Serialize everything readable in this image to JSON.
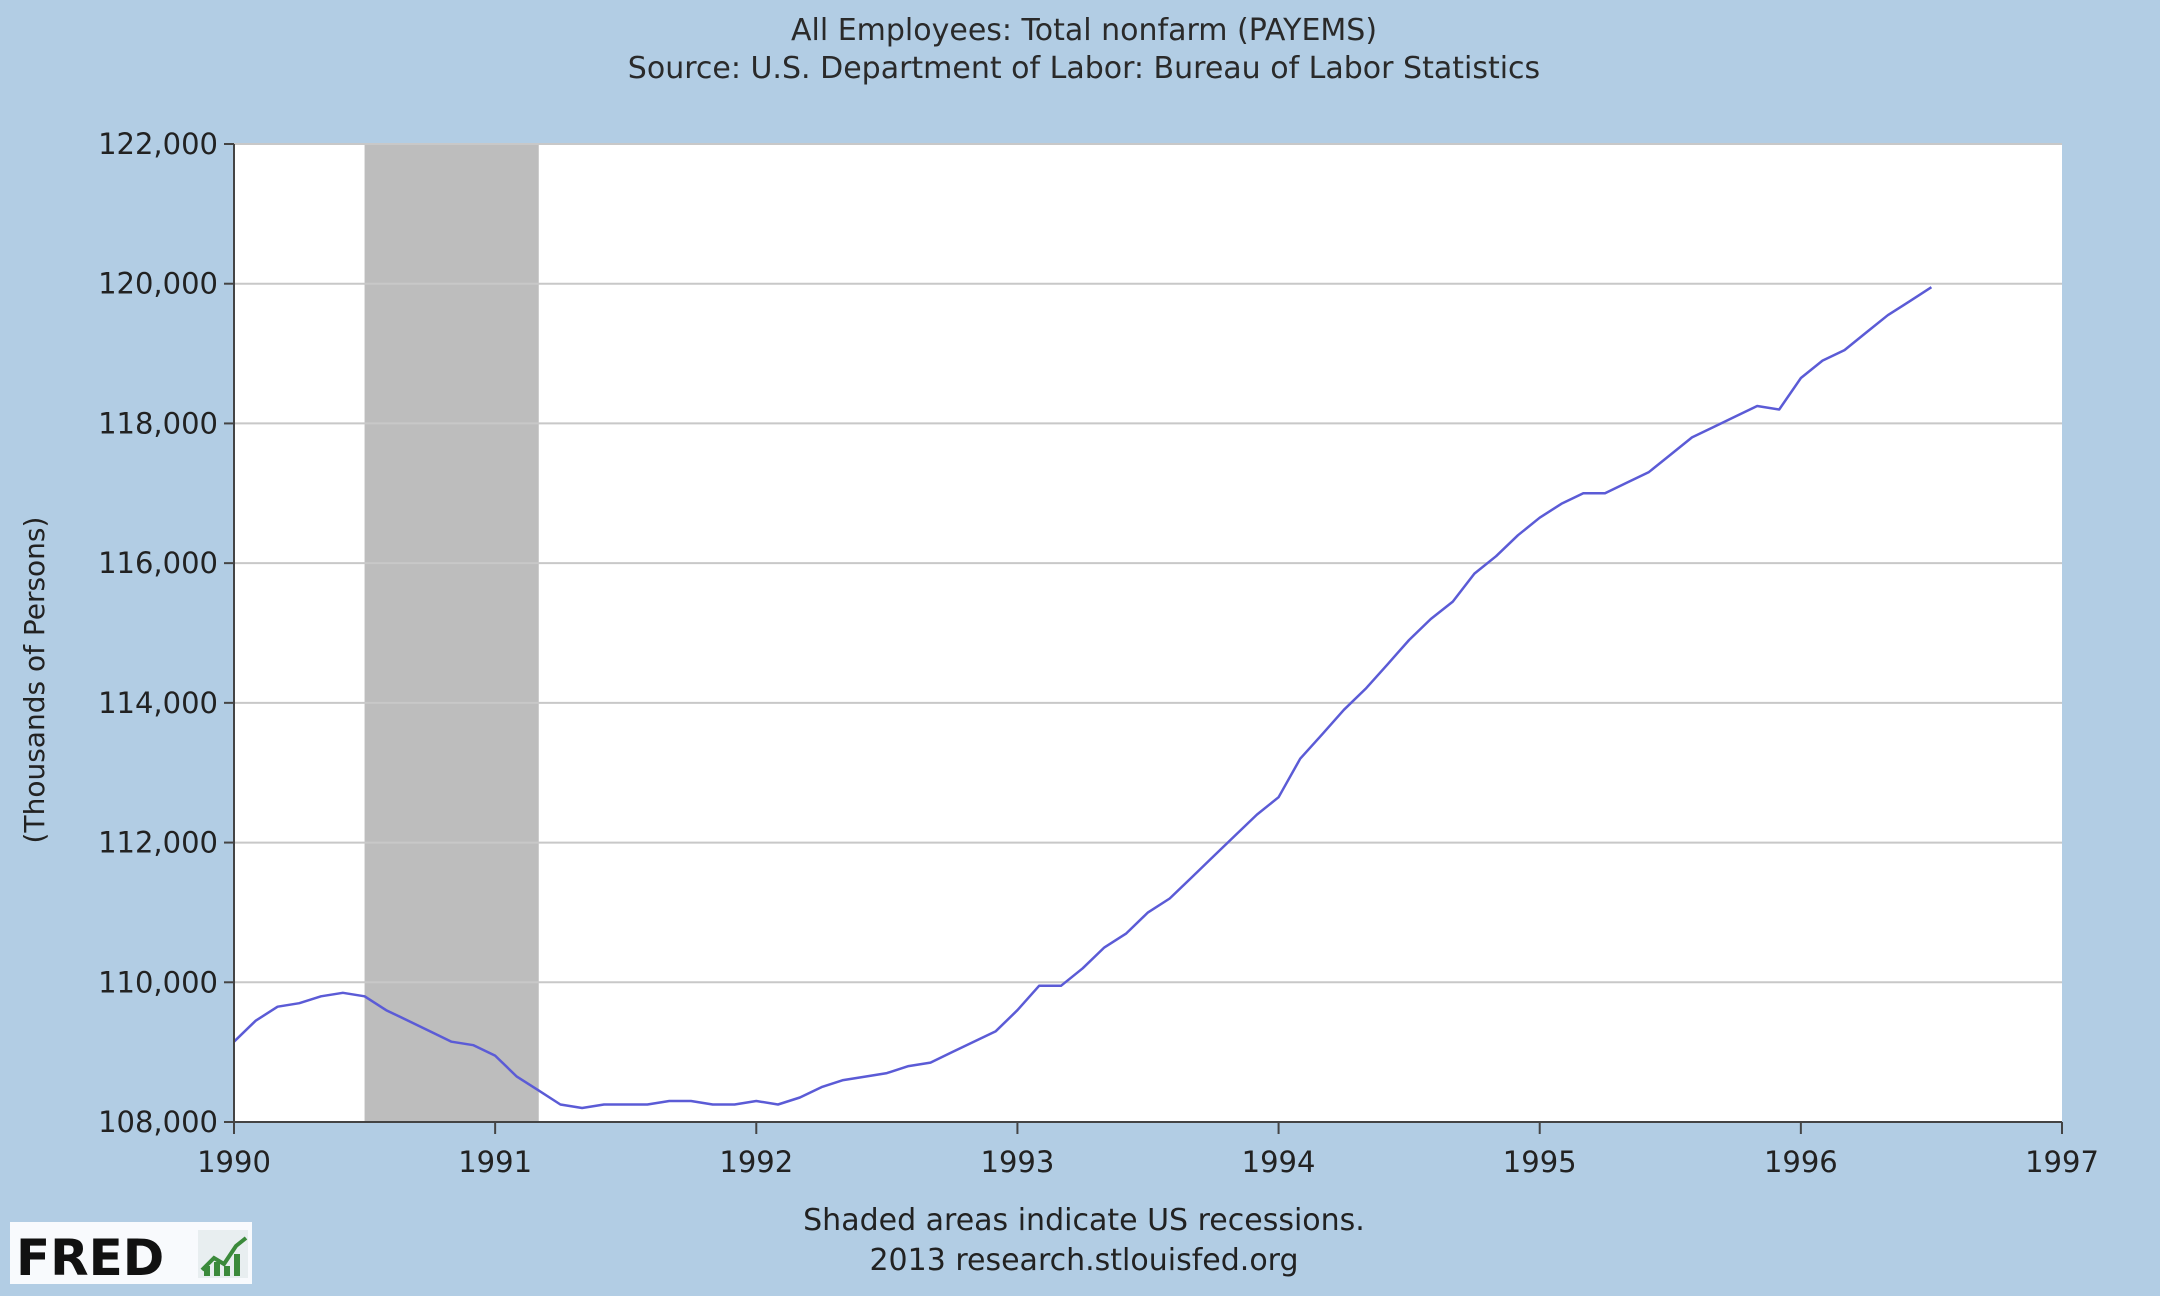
{
  "chart_data": {
    "type": "line",
    "title": "All Employees: Total nonfarm (PAYEMS)",
    "subtitle": "Source: U.S. Department of Labor: Bureau of Labor Statistics",
    "xlabel": "",
    "ylabel": "(Thousands of Persons)",
    "xlim": [
      1990,
      1997
    ],
    "ylim": [
      108000,
      122000
    ],
    "x_ticks": [
      "1990",
      "1991",
      "1992",
      "1993",
      "1994",
      "1995",
      "1996",
      "1997"
    ],
    "y_ticks": [
      "108,000",
      "110,000",
      "112,000",
      "114,000",
      "116,000",
      "118,000",
      "120,000",
      "122,000"
    ],
    "grid": true,
    "recessions": [
      {
        "start": 1990.5,
        "end": 1991.167
      }
    ],
    "series": [
      {
        "color": "#5b5bd6",
        "x": [
          1990.0,
          1990.083,
          1990.167,
          1990.25,
          1990.333,
          1990.417,
          1990.5,
          1990.583,
          1990.667,
          1990.75,
          1990.833,
          1990.917,
          1991.0,
          1991.083,
          1991.167,
          1991.25,
          1991.333,
          1991.417,
          1991.5,
          1991.583,
          1991.667,
          1991.75,
          1991.833,
          1991.917,
          1992.0,
          1992.083,
          1992.167,
          1992.25,
          1992.333,
          1992.417,
          1992.5,
          1992.583,
          1992.667,
          1992.75,
          1992.833,
          1992.917,
          1993.0,
          1993.083,
          1993.167,
          1993.25,
          1993.333,
          1993.417,
          1993.5,
          1993.583,
          1993.667,
          1993.75,
          1993.833,
          1993.917,
          1994.0,
          1994.083,
          1994.167,
          1994.25,
          1994.333,
          1994.417,
          1994.5,
          1994.583,
          1994.667,
          1994.75,
          1994.833,
          1994.917,
          1995.0,
          1995.083,
          1995.167,
          1995.25,
          1995.333,
          1995.417,
          1995.5,
          1995.583,
          1995.667,
          1995.75,
          1995.833,
          1995.917,
          1996.0,
          1996.083,
          1996.167,
          1996.25,
          1996.333,
          1996.417,
          1996.5
        ],
        "y": [
          109150,
          109450,
          109650,
          109700,
          109800,
          109850,
          109800,
          109600,
          109450,
          109300,
          109150,
          109100,
          108950,
          108650,
          108450,
          108250,
          108200,
          108250,
          108250,
          108250,
          108300,
          108300,
          108250,
          108250,
          108300,
          108250,
          108350,
          108500,
          108600,
          108650,
          108700,
          108800,
          108850,
          109000,
          109150,
          109300,
          109600,
          109950,
          109950,
          110200,
          110500,
          110700,
          111000,
          111200,
          111500,
          111800,
          112100,
          112400,
          112650,
          113200,
          113550,
          113900,
          114200,
          114550,
          114900,
          115200,
          115450,
          115850,
          116100,
          116400,
          116650,
          116850,
          117000,
          117000,
          117150,
          117300,
          117550,
          117800,
          117950,
          118100,
          118250,
          118200,
          118650,
          118900,
          119050,
          119300,
          119550,
          119750,
          119950
        ]
      }
    ]
  },
  "footer": {
    "note": "Shaded areas indicate US recessions.",
    "credit": "2013 research.stlouisfed.org"
  },
  "logo": {
    "text": "FRED"
  }
}
